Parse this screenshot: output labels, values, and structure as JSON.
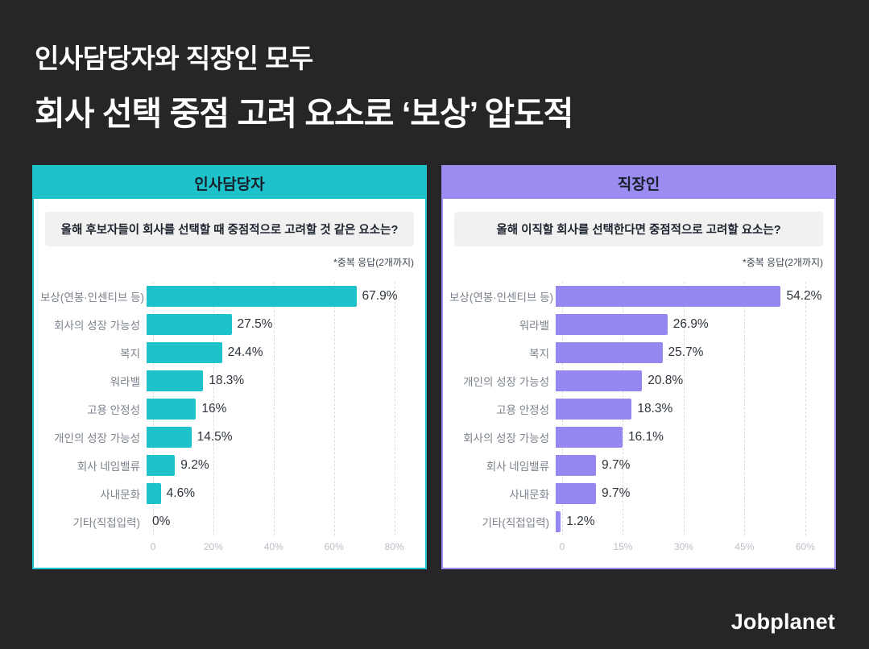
{
  "header": {
    "title_line1": "인사담당자와 직장인 모두",
    "title_line2": "회사 선택 중점 고려 요소로 ‘보상’ 압도적"
  },
  "panels": [
    {
      "header_label": "인사담당자",
      "question": "올해 후보자들이 회사를 선택할 때 중점적으로 고려할 것 같은 요소는?",
      "note": "*중복 응답(2개까지)",
      "accent_color": "#1EC2CA"
    },
    {
      "header_label": "직장인",
      "question": "올해 이직할 회사를 선택한다면 중점적으로 고려할 요소는?",
      "note": "*중복 응답(2개까지)",
      "accent_color": "#9C8CF2"
    }
  ],
  "chart_data": [
    {
      "type": "bar",
      "orientation": "horizontal",
      "group": "인사담당자",
      "title": "올해 후보자들이 회사를 선택할 때 중점적으로 고려할 것 같은 요소는?",
      "annotation": "*중복 응답(2개까지)",
      "categories": [
        "보상(연봉·인센티브 등)",
        "회사의 성장 가능성",
        "복지",
        "워라밸",
        "고용 안정성",
        "개인의 성장 가능성",
        "회사 네임밸류",
        "사내문화",
        "기타(직접입력)"
      ],
      "values": [
        67.9,
        27.5,
        24.4,
        18.3,
        16,
        14.5,
        9.2,
        4.6,
        0
      ],
      "value_labels": [
        "67.9%",
        "27.5%",
        "24.4%",
        "18.3%",
        "16%",
        "14.5%",
        "9.2%",
        "4.6%",
        "0%"
      ],
      "xticks": [
        0,
        20,
        40,
        60,
        80
      ],
      "xtick_labels": [
        "0",
        "20%",
        "40%",
        "60%",
        "80%"
      ],
      "xlim": [
        0,
        86
      ],
      "grid": true,
      "legend": false,
      "bar_color": "#1EC2CA"
    },
    {
      "type": "bar",
      "orientation": "horizontal",
      "group": "직장인",
      "title": "올해 이직할 회사를 선택한다면 중점적으로 고려할 요소는?",
      "annotation": "*중복 응답(2개까지)",
      "categories": [
        "보상(연봉·인센티브 등)",
        "워라밸",
        "복지",
        "개인의 성장 가능성",
        "고용 안정성",
        "회사의 성장 가능성",
        "회사 네임밸류",
        "사내문화",
        "기타(직접입력)"
      ],
      "values": [
        54.2,
        26.9,
        25.7,
        20.8,
        18.3,
        16.1,
        9.7,
        9.7,
        1.2
      ],
      "value_labels": [
        "54.2%",
        "26.9%",
        "25.7%",
        "20.8%",
        "18.3%",
        "16.1%",
        "9.7%",
        "9.7%",
        "1.2%"
      ],
      "xticks": [
        0,
        15,
        30,
        45,
        60
      ],
      "xtick_labels": [
        "0",
        "15%",
        "30%",
        "45%",
        "60%"
      ],
      "xlim": [
        0,
        64
      ],
      "grid": true,
      "legend": false,
      "bar_color": "#9487EF"
    }
  ],
  "footer": {
    "logo": "Jobplanet"
  },
  "colors": {
    "background": "#262628",
    "panel_background": "#ffffff",
    "question_background": "#f1f1f2",
    "title_text": "#ffffff",
    "teal_accent": "#1EC2CA",
    "purple_accent": "#9C8CF2"
  }
}
